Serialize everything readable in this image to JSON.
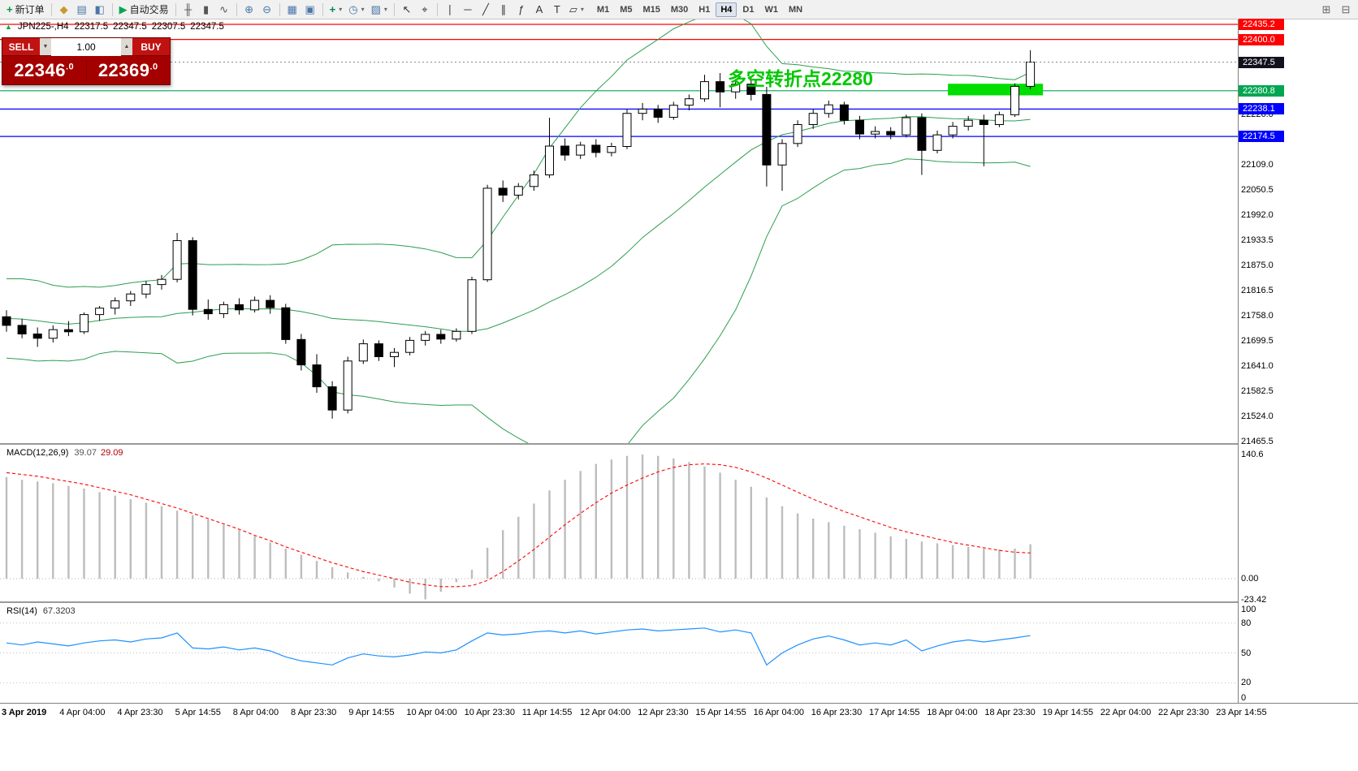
{
  "toolbar": {
    "groups": [
      [
        {
          "button": "new-order-button",
          "icon": "new-order-icon",
          "glyph": "+",
          "color": "#009944",
          "label": "新订单"
        }
      ],
      [
        {
          "button": "profiles-button",
          "icon": "profiles-icon",
          "glyph": "◆",
          "color": "#c79a2e"
        },
        {
          "button": "charts-button",
          "icon": "chart-window-icon",
          "glyph": "▤",
          "color": "#4a76a8"
        },
        {
          "button": "market-watch-button",
          "icon": "market-watch-icon",
          "glyph": "◧",
          "color": "#4a76a8"
        }
      ],
      [
        {
          "button": "auto-trading-button",
          "icon": "play-icon",
          "glyph": "▶",
          "color": "#00a651",
          "label": "自动交易"
        }
      ],
      [
        {
          "button": "bar-chart-button",
          "icon": "bar-chart-icon",
          "glyph": "╫",
          "color": "#555555"
        },
        {
          "button": "candlestick-chart-button",
          "icon": "candlestick-chart-icon",
          "glyph": "▮",
          "color": "#555555"
        },
        {
          "button": "line-chart-button",
          "icon": "line-chart-icon",
          "glyph": "∿",
          "color": "#555555"
        }
      ],
      [
        {
          "button": "zoom-in-button",
          "icon": "zoom-in-icon",
          "glyph": "⊕",
          "color": "#4a76a8"
        },
        {
          "button": "zoom-out-button",
          "icon": "zoom-out-icon",
          "glyph": "⊖",
          "color": "#4a76a8"
        }
      ],
      [
        {
          "button": "tile-windows-button",
          "icon": "tile-windows-icon",
          "glyph": "▦",
          "color": "#4a76a8"
        },
        {
          "button": "arrange-windows-button",
          "icon": "cascade-windows-icon",
          "glyph": "▣",
          "color": "#4a76a8"
        }
      ],
      [
        {
          "button": "indicators-button",
          "icon": "indicators-icon",
          "glyph": "+",
          "color": "#00884c",
          "dropdown": true
        },
        {
          "button": "periods-button",
          "icon": "clock-icon",
          "glyph": "◷",
          "color": "#4a76a8",
          "dropdown": true
        },
        {
          "button": "templates-button",
          "icon": "template-icon",
          "glyph": "▨",
          "color": "#4a76a8",
          "dropdown": true
        }
      ],
      [
        {
          "button": "cursor-button",
          "icon": "cursor-icon",
          "glyph": "↖",
          "color": "#333333"
        },
        {
          "button": "crosshair-button",
          "icon": "crosshair-icon",
          "glyph": "⌖",
          "color": "#333333"
        }
      ],
      [
        {
          "button": "vertical-line-button",
          "icon": "vertical-line-icon",
          "glyph": "∣",
          "color": "#333333"
        },
        {
          "button": "horizontal-line-button",
          "icon": "horizontal-line-icon",
          "glyph": "─",
          "color": "#333333"
        },
        {
          "button": "trendline-button",
          "icon": "trendline-icon",
          "glyph": "╱",
          "color": "#333333"
        },
        {
          "button": "channel-button",
          "icon": "channel-icon",
          "glyph": "∥",
          "color": "#333333"
        },
        {
          "button": "fibonacci-button",
          "icon": "fibonacci-icon",
          "glyph": "ƒ",
          "color": "#333333"
        },
        {
          "button": "text-button",
          "icon": "text-icon",
          "glyph": "A",
          "color": "#333333"
        },
        {
          "button": "label-button",
          "icon": "label-icon",
          "glyph": "T",
          "color": "#333333"
        },
        {
          "button": "shapes-button",
          "icon": "shapes-icon",
          "glyph": "▱",
          "color": "#333333",
          "dropdown": true
        }
      ]
    ],
    "timeframes": [
      "M1",
      "M5",
      "M15",
      "M30",
      "H1",
      "H4",
      "D1",
      "W1",
      "MN"
    ],
    "active_timeframe": "H4",
    "right_icons": [
      {
        "button": "dock-panel-button",
        "icon": "dock-icon",
        "glyph": "⊞"
      },
      {
        "button": "collapse-panel-button",
        "icon": "collapse-icon",
        "glyph": "⊟"
      }
    ]
  },
  "trade_panel": {
    "sell_label": "SELL",
    "buy_label": "BUY",
    "volume": "1.00",
    "spin_down_icon": "▼",
    "spin_up_icon": "▲",
    "sell_price_main": "22346",
    "sell_price_frac": ".0",
    "buy_price_main": "22369",
    "buy_price_frac": ".0"
  },
  "chart": {
    "legend": {
      "direction_icon": "▲",
      "symbol_timeframe": "JPN225-,H4",
      "open": "22317.5",
      "high": "22347.5",
      "low": "22307.5",
      "close": "22347.5"
    },
    "annotation": {
      "text": "多空转折点22280",
      "color": "#00c800"
    },
    "highlight_rect": {
      "bar_start": 61,
      "bar_end": 66.5,
      "price_top": 22297,
      "price_bottom": 22270,
      "color": "#00dd00"
    },
    "lines": [
      {
        "label": "22435.2",
        "price": 22435.2,
        "color": "#ff0000"
      },
      {
        "label": "22400.0",
        "price": 22400.0,
        "color": "#ff0000"
      },
      {
        "label": "22280.8",
        "price": 22280.8,
        "color": "#00a651"
      },
      {
        "label": "22238.1",
        "price": 22238.1,
        "color": "#0000ff"
      },
      {
        "label": "22174.5",
        "price": 22174.5,
        "color": "#0000ff"
      }
    ],
    "bid": {
      "label": "22347.5",
      "price": 22347.5,
      "label_bg": "#12121e"
    },
    "price_scale_labels": [
      {
        "text": "22284.5",
        "price": 22284.5
      },
      {
        "text": "22226.0",
        "price": 22226.0
      },
      {
        "text": "22167.5",
        "price": 22167.5
      },
      {
        "text": "22109.0",
        "price": 22109.0
      },
      {
        "text": "22050.5",
        "price": 22050.5
      },
      {
        "text": "21992.0",
        "price": 21992.0
      },
      {
        "text": "21933.5",
        "price": 21933.5
      },
      {
        "text": "21875.0",
        "price": 21875.0
      },
      {
        "text": "21816.5",
        "price": 21816.5
      },
      {
        "text": "21758.0",
        "price": 21758.0
      },
      {
        "text": "21699.5",
        "price": 21699.5
      },
      {
        "text": "21641.0",
        "price": 21641.0
      },
      {
        "text": "21582.5",
        "price": 21582.5
      },
      {
        "text": "21524.0",
        "price": 21524.0
      },
      {
        "text": "21465.5",
        "price": 21465.5
      }
    ],
    "bands": {
      "period": 20,
      "deviation": 2,
      "color": "#2e9e50"
    },
    "bands_seed_closes": [
      21690,
      21740,
      21790,
      21820,
      21780,
      21700,
      21660,
      21700,
      21760,
      21810,
      21830,
      21780,
      21720,
      21680,
      21710,
      21760,
      21800,
      21770,
      21730,
      21745
    ],
    "candles": [
      [
        21755,
        21770,
        21720,
        21735
      ],
      [
        21735,
        21750,
        21705,
        21715
      ],
      [
        21715,
        21730,
        21685,
        21705
      ],
      [
        21705,
        21735,
        21695,
        21725
      ],
      [
        21725,
        21745,
        21710,
        21720
      ],
      [
        21720,
        21765,
        21715,
        21760
      ],
      [
        21760,
        21780,
        21745,
        21775
      ],
      [
        21775,
        21800,
        21760,
        21792
      ],
      [
        21792,
        21815,
        21780,
        21808
      ],
      [
        21808,
        21838,
        21798,
        21830
      ],
      [
        21830,
        21852,
        21818,
        21842
      ],
      [
        21842,
        21950,
        21835,
        21932
      ],
      [
        21932,
        21940,
        21758,
        21772
      ],
      [
        21772,
        21795,
        21748,
        21762
      ],
      [
        21762,
        21790,
        21752,
        21783
      ],
      [
        21783,
        21798,
        21760,
        21771
      ],
      [
        21771,
        21802,
        21765,
        21793
      ],
      [
        21793,
        21805,
        21762,
        21776
      ],
      [
        21776,
        21785,
        21692,
        21702
      ],
      [
        21702,
        21715,
        21630,
        21643
      ],
      [
        21643,
        21668,
        21578,
        21592
      ],
      [
        21592,
        21605,
        21518,
        21538
      ],
      [
        21538,
        21662,
        21530,
        21652
      ],
      [
        21652,
        21702,
        21645,
        21692
      ],
      [
        21692,
        21700,
        21652,
        21662
      ],
      [
        21662,
        21682,
        21638,
        21672
      ],
      [
        21672,
        21708,
        21665,
        21700
      ],
      [
        21700,
        21722,
        21688,
        21714
      ],
      [
        21714,
        21725,
        21692,
        21703
      ],
      [
        21703,
        21728,
        21697,
        21721
      ],
      [
        21721,
        21848,
        21715,
        21841
      ],
      [
        21841,
        22062,
        21836,
        22054
      ],
      [
        22054,
        22072,
        22022,
        22038
      ],
      [
        22038,
        22066,
        22028,
        22058
      ],
      [
        22058,
        22095,
        22048,
        22085
      ],
      [
        22085,
        22218,
        22078,
        22152
      ],
      [
        22152,
        22170,
        22118,
        22131
      ],
      [
        22131,
        22162,
        22122,
        22154
      ],
      [
        22154,
        22168,
        22126,
        22137
      ],
      [
        22137,
        22160,
        22128,
        22151
      ],
      [
        22151,
        22238,
        22145,
        22228
      ],
      [
        22228,
        22252,
        22212,
        22238
      ],
      [
        22238,
        22248,
        22206,
        22219
      ],
      [
        22219,
        22255,
        22213,
        22247
      ],
      [
        22247,
        22272,
        22235,
        22262
      ],
      [
        22262,
        22318,
        22255,
        22302
      ],
      [
        22302,
        22322,
        22242,
        22278
      ],
      [
        22278,
        22308,
        22262,
        22296
      ],
      [
        22296,
        22310,
        22258,
        22272
      ],
      [
        22272,
        22290,
        22058,
        22108
      ],
      [
        22108,
        22168,
        22048,
        22158
      ],
      [
        22158,
        22212,
        22150,
        22202
      ],
      [
        22202,
        22238,
        22192,
        22228
      ],
      [
        22228,
        22258,
        22218,
        22248
      ],
      [
        22248,
        22255,
        22202,
        22212
      ],
      [
        22212,
        22222,
        22168,
        22180
      ],
      [
        22180,
        22198,
        22170,
        22186
      ],
      [
        22186,
        22196,
        22168,
        22178
      ],
      [
        22178,
        22225,
        22172,
        22218
      ],
      [
        22218,
        22228,
        22085,
        22142
      ],
      [
        22142,
        22188,
        22135,
        22178
      ],
      [
        22178,
        22208,
        22170,
        22198
      ],
      [
        22198,
        22222,
        22188,
        22212
      ],
      [
        22212,
        22225,
        22105,
        22202
      ],
      [
        22202,
        22232,
        22196,
        22225
      ],
      [
        22225,
        22298,
        22220,
        22291
      ],
      [
        22291,
        22375,
        22285,
        22347.5
      ]
    ],
    "time_labels": [
      "3 Apr 2019",
      "4 Apr 04:00",
      "4 Apr 23:30",
      "5 Apr 14:55",
      "8 Apr 04:00",
      "8 Apr 23:30",
      "9 Apr 14:55",
      "10 Apr 04:00",
      "10 Apr 23:30",
      "11 Apr 14:55",
      "12 Apr 04:00",
      "12 Apr 23:30",
      "15 Apr 14:55",
      "16 Apr 04:00",
      "16 Apr 23:30",
      "17 Apr 14:55",
      "18 Apr 04:00",
      "18 Apr 23:30",
      "19 Apr 14:55",
      "22 Apr 04:00",
      "22 Apr 23:30",
      "23 Apr 14:55"
    ]
  },
  "macd": {
    "label": "MACD(12,26,9)",
    "value_main": "39.07",
    "value_signal": "29.09",
    "hist_color": "#bdbdbd",
    "signal_color": "#ff0000",
    "scale": [
      {
        "label": "140.6",
        "value": 140.6
      },
      {
        "label": "0.00",
        "value": 0
      },
      {
        "label": "-23.42",
        "value": -23.42
      }
    ],
    "histogram": [
      115,
      112,
      110,
      108,
      105,
      102,
      98,
      94,
      90,
      86,
      82,
      77,
      72,
      67,
      61,
      55,
      48,
      41,
      34,
      27,
      20,
      13,
      7,
      2,
      -3,
      -10,
      -17,
      -23.42,
      -15,
      -4,
      10,
      35,
      55,
      70,
      85,
      100,
      112,
      122,
      130,
      135,
      139,
      140.6,
      139,
      136,
      132,
      127,
      120,
      112,
      104,
      92,
      82,
      74,
      68,
      64,
      60,
      56,
      52,
      48,
      45,
      42,
      40,
      38,
      36,
      34,
      33,
      34,
      39.07
    ],
    "signal": [
      120,
      118,
      116,
      113,
      110,
      107,
      103,
      99,
      95,
      90,
      85,
      80,
      74,
      68,
      62,
      56,
      49,
      43,
      36,
      30,
      24,
      18,
      13,
      8,
      4,
      0,
      -4,
      -7,
      -9,
      -9,
      -8,
      -2,
      8,
      20,
      33,
      47,
      61,
      74,
      86,
      97,
      106,
      114,
      121,
      126,
      129,
      130,
      129,
      126,
      121,
      114,
      106,
      98,
      90,
      83,
      76,
      70,
      64,
      58,
      53,
      49,
      45,
      41,
      38,
      35,
      32,
      30,
      29.09
    ]
  },
  "rsi": {
    "label": "RSI(14)",
    "value": "67.3203",
    "color": "#1e90ff",
    "levels": [
      {
        "label": "100",
        "value": 100
      },
      {
        "label": "80",
        "value": 80,
        "line": true
      },
      {
        "label": "50",
        "value": 50,
        "line": true
      },
      {
        "label": "20",
        "value": 20,
        "line": true
      },
      {
        "label": "0",
        "value": 0
      }
    ],
    "values": [
      60,
      58,
      61,
      59,
      57,
      60,
      62,
      63,
      61,
      64,
      65,
      70,
      55,
      54,
      56,
      53,
      55,
      52,
      46,
      42,
      40,
      38,
      45,
      49,
      47,
      46,
      48,
      51,
      50,
      53,
      62,
      70,
      68,
      69,
      71,
      72,
      70,
      72,
      69,
      71,
      73,
      74,
      72,
      73,
      74,
      75,
      71,
      73,
      70,
      38,
      50,
      58,
      64,
      67,
      63,
      58,
      60,
      58,
      63,
      52,
      57,
      61,
      63,
      61,
      63,
      65,
      67.32
    ]
  }
}
